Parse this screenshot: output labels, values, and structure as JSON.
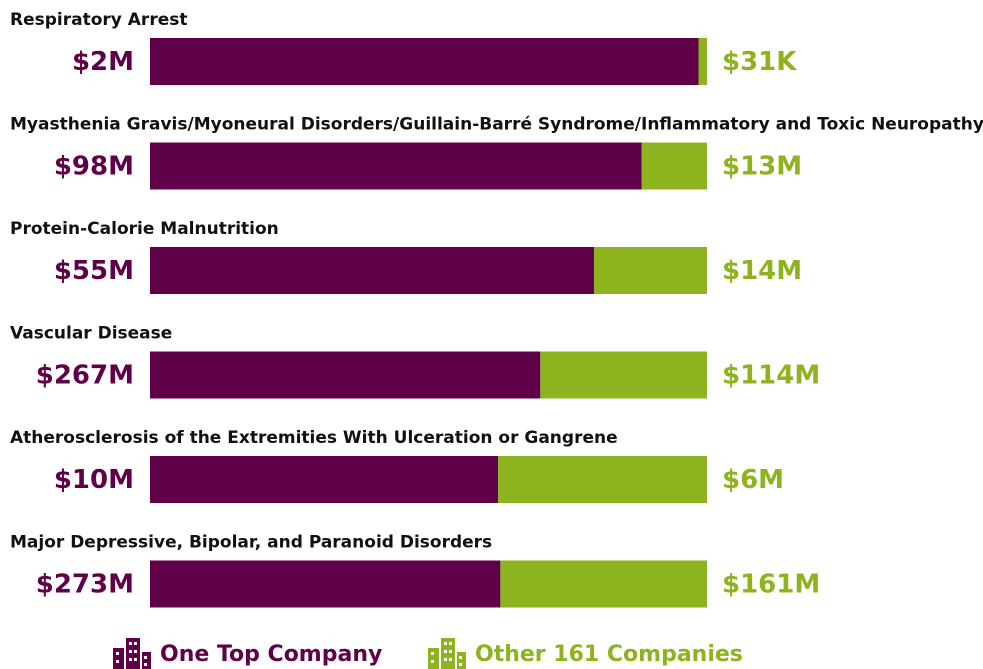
{
  "chart_data": {
    "type": "bar",
    "orientation": "horizontal",
    "stacked": true,
    "normalized": true,
    "categories": [
      "Respiratory Arrest",
      "Myasthenia Gravis/Myoneural Disorders/Guillain-Barré Syndrome/Inflammatory and Toxic Neuropathy",
      "Protein-Calorie Malnutrition",
      "Vascular Disease",
      "Atherosclerosis of the Extremities With Ulceration or Gangrene",
      "Major Depressive, Bipolar, and Paranoid Disorders"
    ],
    "series": [
      {
        "name": "One Top Company",
        "color": "#5f0048",
        "values": [
          2000000,
          98000000,
          55000000,
          267000000,
          10000000,
          273000000
        ],
        "value_labels": [
          "$2M",
          "$98M",
          "$55M",
          "$267M",
          "$10M",
          "$273M"
        ]
      },
      {
        "name": "Other 161 Companies",
        "color": "#8db31f",
        "values": [
          31000,
          13000000,
          14000000,
          114000000,
          6000000,
          161000000
        ],
        "value_labels": [
          "$31K",
          "$13M",
          "$14M",
          "$114M",
          "$6M",
          "$161M"
        ]
      }
    ],
    "legend": "bottom"
  }
}
